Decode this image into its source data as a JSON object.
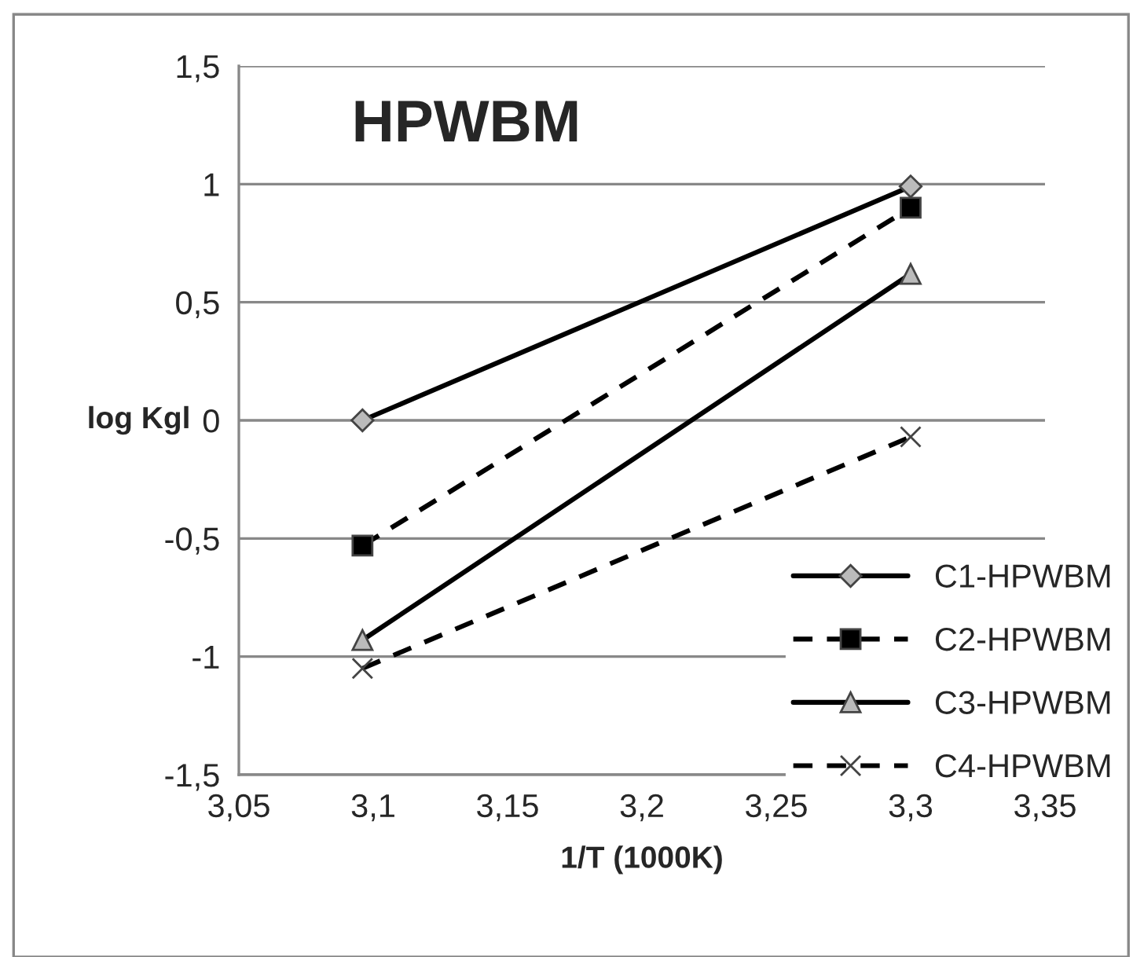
{
  "chart_data": {
    "type": "line",
    "title": "HPWBM",
    "xlabel": "1/T (1000K)",
    "ylabel": "log Kgl",
    "x": [
      3.096,
      3.3
    ],
    "series": [
      {
        "name": "C1-HPWBM",
        "color": "#000000",
        "marker": "diamond",
        "line_style": "solid",
        "values": [
          0,
          0.99
        ]
      },
      {
        "name": "C2-HPWBM",
        "color": "#000000",
        "marker": "square",
        "line_style": "dashed",
        "values": [
          -0.53,
          0.9
        ]
      },
      {
        "name": "C3-HPWBM",
        "color": "#000000",
        "marker": "triangle",
        "line_style": "solid",
        "values": [
          -0.93,
          0.62
        ]
      },
      {
        "name": "C4-HPWBM",
        "color": "#000000",
        "marker": "cross",
        "line_style": "dashed",
        "values": [
          -1.05,
          -0.07
        ]
      }
    ],
    "xlim": [
      3.05,
      3.35
    ],
    "ylim": [
      -1.5,
      1.5
    ],
    "xticks": [
      {
        "value": 3.05,
        "label": "3,05"
      },
      {
        "value": 3.1,
        "label": "3,1"
      },
      {
        "value": 3.15,
        "label": "3,15"
      },
      {
        "value": 3.2,
        "label": "3,2"
      },
      {
        "value": 3.25,
        "label": "3,25"
      },
      {
        "value": 3.3,
        "label": "3,3"
      },
      {
        "value": 3.35,
        "label": "3,35"
      }
    ],
    "yticks": [
      {
        "value": -1.5,
        "label": "-1,5"
      },
      {
        "value": -1,
        "label": "-1"
      },
      {
        "value": -0.5,
        "label": "-0,5"
      },
      0,
      {
        "value": 0.5,
        "label": "0,5"
      },
      1,
      {
        "value": 1.5,
        "label": "1,5"
      }
    ],
    "grid": "y",
    "legend": "bottom right"
  }
}
